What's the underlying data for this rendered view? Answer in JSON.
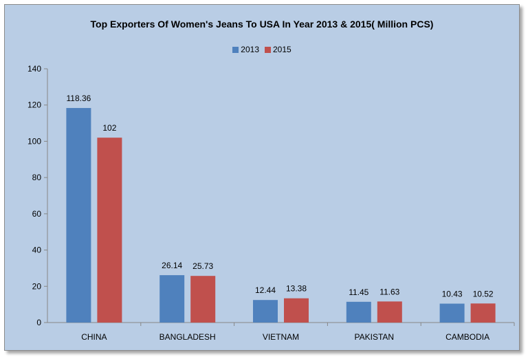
{
  "chart_data": {
    "type": "bar",
    "title": "Top Exporters Of Women's Jeans To USA In Year 2013 & 2015( Million PCS)",
    "categories": [
      "CHINA",
      "BANGLADESH",
      "VIETNAM",
      "PAKISTAN",
      "CAMBODIA"
    ],
    "series": [
      {
        "name": "2013",
        "values": [
          118.36,
          26.14,
          12.44,
          11.45,
          10.43
        ],
        "color": "#4f81bd",
        "labels": [
          "118.36",
          "26.14",
          "12.44",
          "11.45",
          "10.43"
        ]
      },
      {
        "name": "2015",
        "values": [
          102,
          25.73,
          13.38,
          11.63,
          10.52
        ],
        "color": "#c0504d",
        "labels": [
          "102",
          "25.73",
          "13.38",
          "11.63",
          "10.52"
        ]
      }
    ],
    "ylim": [
      0,
      140
    ],
    "yticks": [
      0,
      20,
      40,
      60,
      80,
      100,
      120,
      140
    ],
    "legend_position": "top-center",
    "grid": false,
    "xlabel": "",
    "ylabel": ""
  },
  "colors": {
    "background": "#b9cde5",
    "axis": "#868686"
  }
}
